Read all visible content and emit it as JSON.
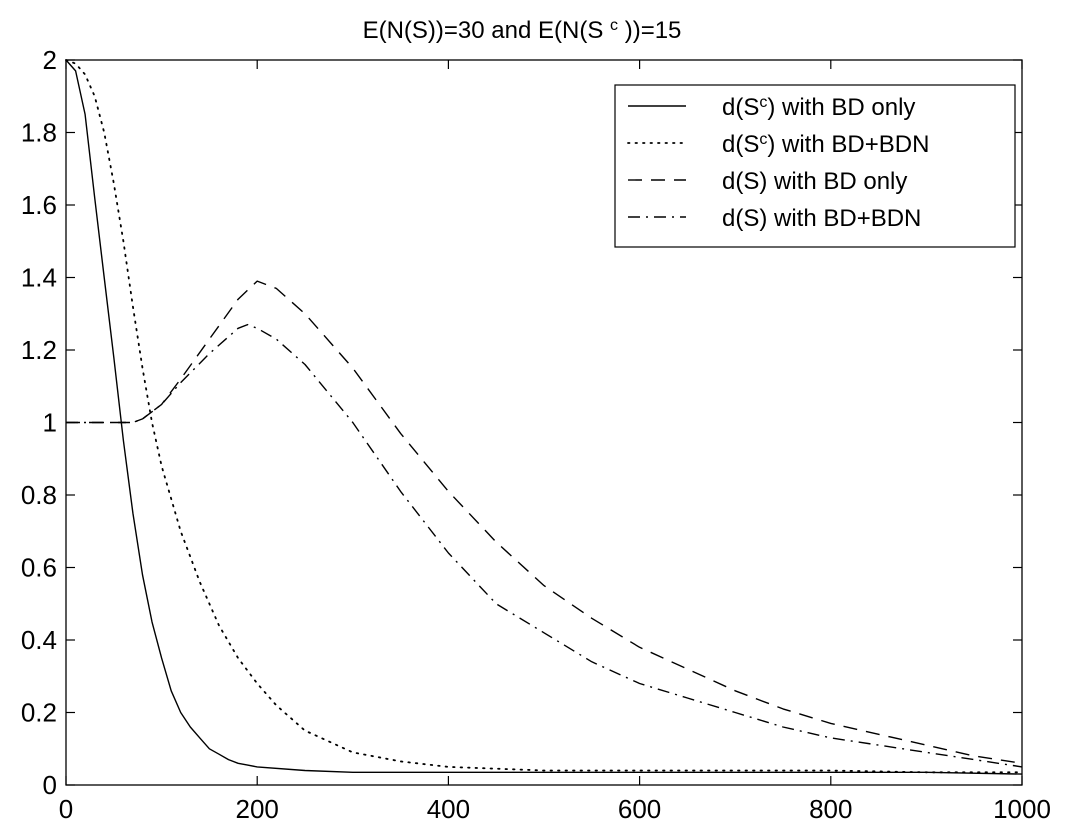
{
  "chart_data": {
    "type": "line",
    "title": {
      "part1": "E(N(S))=30",
      "part2": "and",
      "part3_prefix": "E(N(S",
      "part3_sup": "c",
      "part3_suffix": "))=15"
    },
    "xlabel": "",
    "ylabel": "",
    "xlim": [
      0,
      1000
    ],
    "ylim": [
      0,
      2
    ],
    "x_ticks": [
      0,
      200,
      400,
      600,
      800,
      1000
    ],
    "y_ticks": [
      0,
      0.2,
      0.4,
      0.6,
      0.8,
      1,
      1.2,
      1.4,
      1.6,
      1.8,
      2
    ],
    "x_tick_labels": [
      "0",
      "200",
      "400",
      "600",
      "800",
      "1000"
    ],
    "y_tick_labels": [
      "0",
      "0.2",
      "0.4",
      "0.6",
      "0.8",
      "1",
      "1.2",
      "1.4",
      "1.6",
      "1.8",
      "2"
    ],
    "grid": false,
    "legend_position": "top-right",
    "series": [
      {
        "name": "d(S^c) with BD only",
        "legend": {
          "prefix": "d(S",
          "sup": "c",
          "suffix": ") with BD only"
        },
        "style": "solid",
        "x": [
          0,
          10,
          20,
          30,
          40,
          50,
          60,
          70,
          80,
          90,
          100,
          110,
          120,
          130,
          140,
          150,
          160,
          170,
          180,
          190,
          200,
          250,
          300,
          400,
          500,
          600,
          700,
          800,
          900,
          1000
        ],
        "y": [
          2.0,
          1.97,
          1.85,
          1.62,
          1.4,
          1.18,
          0.95,
          0.75,
          0.58,
          0.45,
          0.35,
          0.26,
          0.2,
          0.16,
          0.13,
          0.1,
          0.085,
          0.07,
          0.06,
          0.055,
          0.05,
          0.04,
          0.035,
          0.035,
          0.035,
          0.035,
          0.035,
          0.035,
          0.035,
          0.03
        ]
      },
      {
        "name": "d(S^c) with BD+BDN",
        "legend": {
          "prefix": "d(S",
          "sup": "c",
          "suffix": ") with BD+BDN"
        },
        "style": "dotted",
        "x": [
          0,
          10,
          20,
          30,
          40,
          50,
          60,
          70,
          80,
          90,
          100,
          120,
          140,
          160,
          180,
          200,
          220,
          250,
          300,
          350,
          400,
          450,
          500,
          600,
          700,
          800,
          900,
          1000
        ],
        "y": [
          2.0,
          1.99,
          1.96,
          1.9,
          1.8,
          1.66,
          1.5,
          1.32,
          1.15,
          1.0,
          0.88,
          0.7,
          0.56,
          0.44,
          0.35,
          0.28,
          0.22,
          0.15,
          0.09,
          0.065,
          0.05,
          0.045,
          0.04,
          0.04,
          0.04,
          0.04,
          0.035,
          0.035
        ]
      },
      {
        "name": "d(S) with BD only",
        "legend": {
          "prefix": "d(S) with   BD only",
          "sup": "",
          "suffix": ""
        },
        "style": "dashed",
        "x": [
          0,
          20,
          40,
          60,
          70,
          80,
          100,
          120,
          150,
          180,
          200,
          220,
          250,
          300,
          350,
          400,
          450,
          500,
          550,
          600,
          650,
          700,
          750,
          800,
          850,
          900,
          950,
          1000
        ],
        "y": [
          1.0,
          1.0,
          1.0,
          1.0,
          1.0,
          1.01,
          1.05,
          1.12,
          1.23,
          1.34,
          1.39,
          1.37,
          1.3,
          1.15,
          0.97,
          0.81,
          0.67,
          0.55,
          0.46,
          0.38,
          0.32,
          0.26,
          0.21,
          0.17,
          0.14,
          0.11,
          0.08,
          0.06
        ]
      },
      {
        "name": "d(S) with BD+BDN",
        "legend": {
          "prefix": "d(S) with BD+BDN",
          "sup": "",
          "suffix": ""
        },
        "style": "dashdot",
        "x": [
          0,
          20,
          40,
          60,
          70,
          80,
          100,
          120,
          150,
          180,
          190,
          200,
          220,
          250,
          300,
          350,
          400,
          450,
          500,
          550,
          600,
          650,
          700,
          750,
          800,
          850,
          900,
          950,
          1000
        ],
        "y": [
          1.0,
          1.0,
          1.0,
          1.0,
          1.0,
          1.01,
          1.05,
          1.11,
          1.19,
          1.26,
          1.27,
          1.26,
          1.23,
          1.16,
          1.0,
          0.81,
          0.64,
          0.5,
          0.42,
          0.34,
          0.28,
          0.24,
          0.2,
          0.16,
          0.13,
          0.11,
          0.09,
          0.07,
          0.05
        ]
      }
    ]
  }
}
